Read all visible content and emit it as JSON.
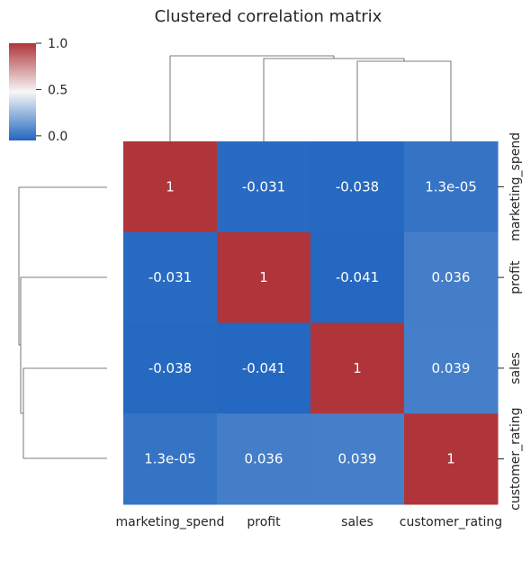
{
  "chart_data": {
    "type": "heatmap",
    "title": "Clustered correlation matrix",
    "row_labels": [
      "marketing_spend",
      "profit",
      "sales",
      "customer_rating"
    ],
    "col_labels": [
      "marketing_spend",
      "profit",
      "sales",
      "customer_rating"
    ],
    "values": [
      [
        1,
        -0.031,
        -0.038,
        1.3e-05
      ],
      [
        -0.031,
        1,
        -0.041,
        0.036
      ],
      [
        -0.038,
        -0.041,
        1,
        0.039
      ],
      [
        1.3e-05,
        0.036,
        0.039,
        1
      ]
    ],
    "annotations": [
      [
        "1",
        "-0.031",
        "-0.038",
        "1.3e-05"
      ],
      [
        "-0.031",
        "1",
        "-0.041",
        "0.036"
      ],
      [
        "-0.038",
        "-0.041",
        "1",
        "0.039"
      ],
      [
        "1.3e-05",
        "0.036",
        "0.039",
        "1"
      ]
    ],
    "colorbar": {
      "range": [
        -0.05,
        1.0
      ],
      "ticks": [
        "0.0",
        "0.5",
        "1.0"
      ],
      "tick_values": [
        0.0,
        0.5,
        1.0
      ],
      "colormap_low": "#2166c0",
      "colormap_mid": "#f7f7f7",
      "colormap_high": "#b0353a"
    },
    "dendrogram": "column and row dendrograms shown"
  }
}
